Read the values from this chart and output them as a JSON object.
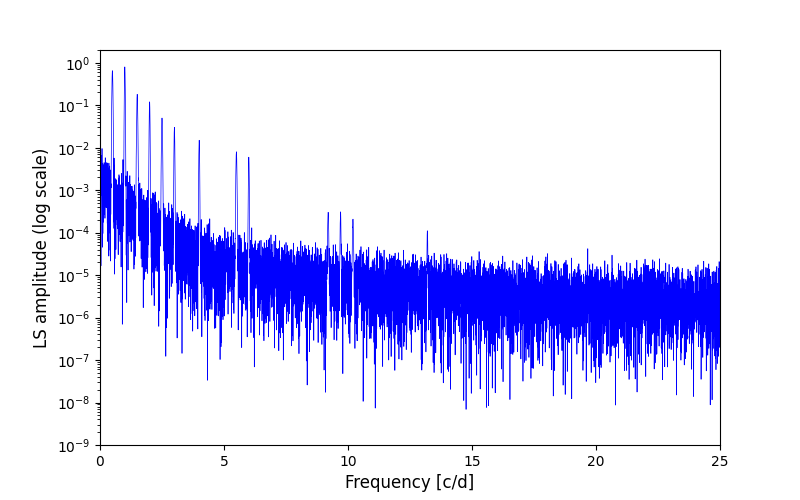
{
  "title": "",
  "xlabel": "Frequency [c/d]",
  "ylabel": "LS amplitude (log scale)",
  "line_color": "blue",
  "line_width": 0.5,
  "xlim": [
    0,
    25
  ],
  "ylim": [
    1e-09,
    2.0
  ],
  "xmin": 0.0,
  "xmax": 25.0,
  "num_points": 8000,
  "seed": 12345,
  "background_color": "#ffffff",
  "figsize": [
    8.0,
    5.0
  ],
  "dpi": 100
}
